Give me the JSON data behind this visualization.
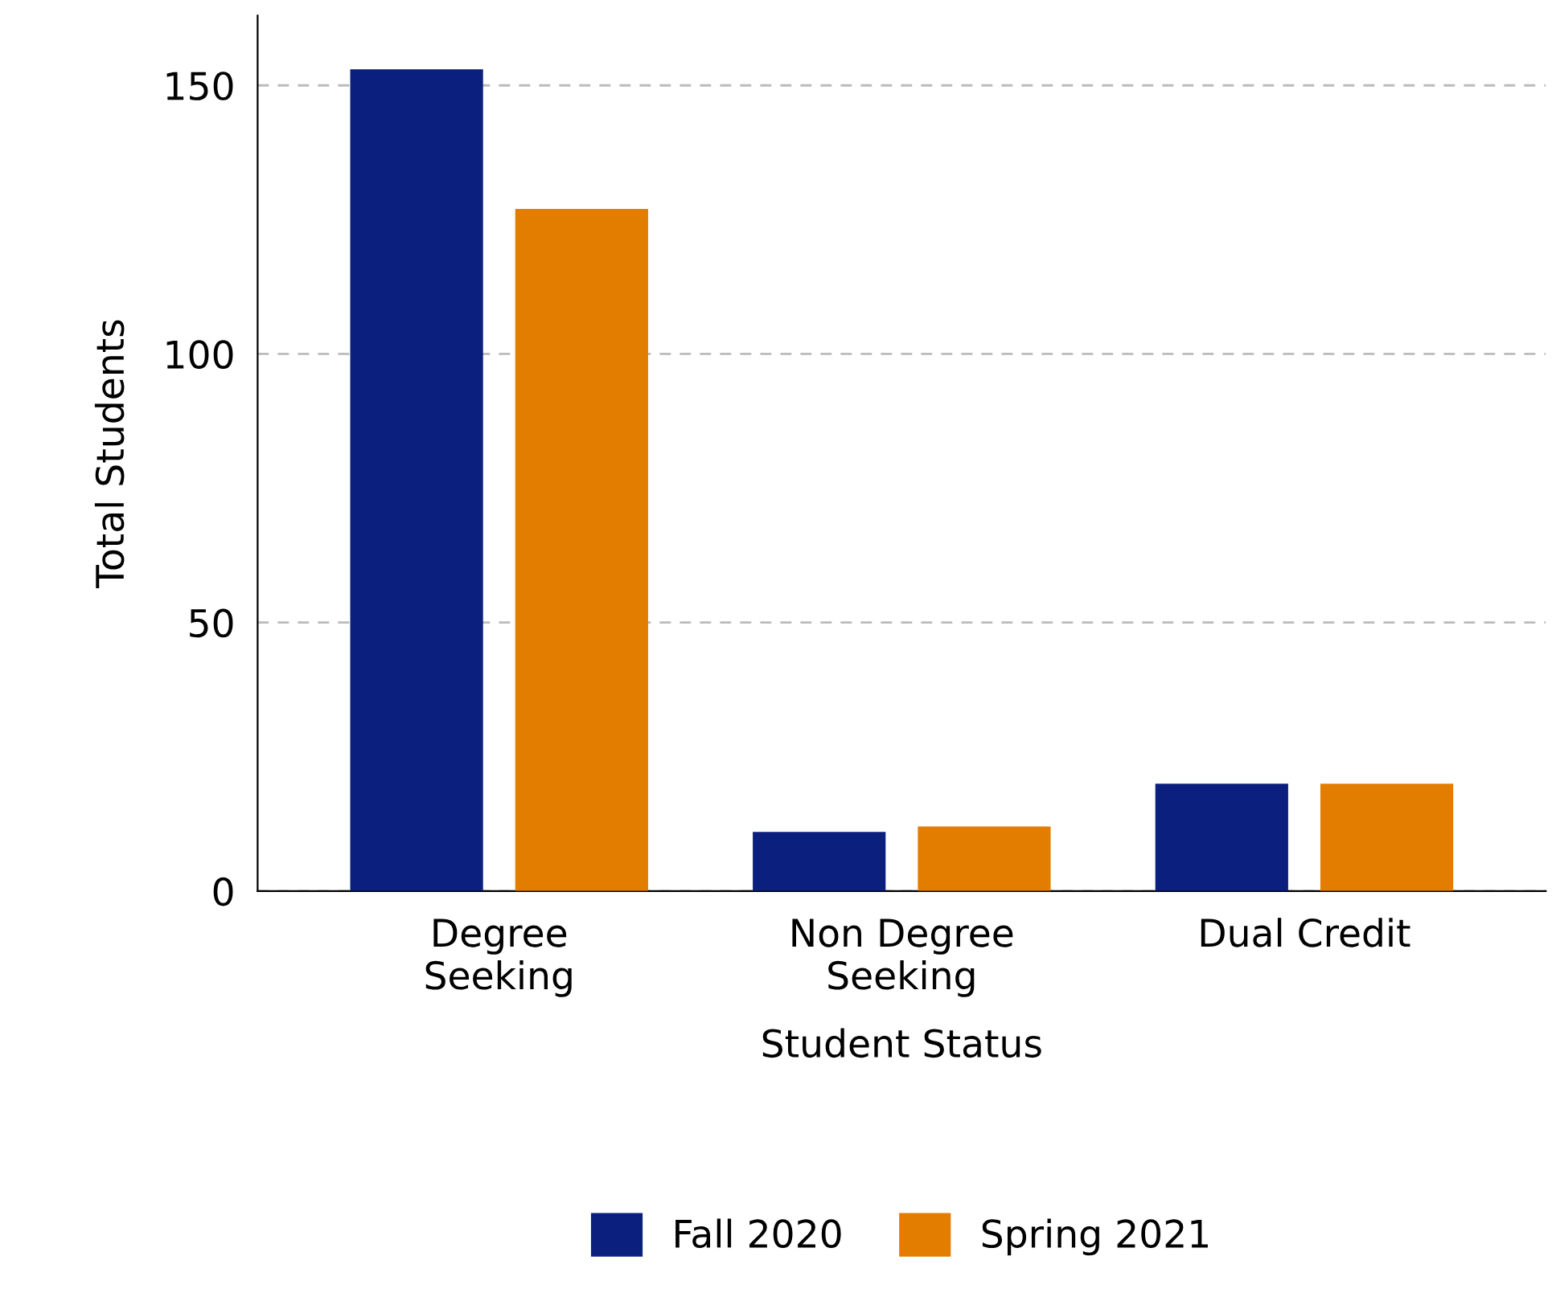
{
  "chart_data": {
    "type": "bar",
    "xlabel": "Student Status",
    "ylabel": "Total Students",
    "categories": [
      "Degree\nSeeking",
      "Non Degree\nSeeking",
      "Dual Credit"
    ],
    "series": [
      {
        "name": "Fall 2020",
        "color": "#0b1f7e",
        "values": [
          153,
          11,
          20
        ]
      },
      {
        "name": "Spring 2021",
        "color": "#e27d00",
        "values": [
          127,
          12,
          20
        ]
      }
    ],
    "ylim": [
      0,
      163
    ],
    "yticks": [
      0,
      50,
      100,
      150
    ],
    "grid": "y",
    "legend": "bottom"
  }
}
